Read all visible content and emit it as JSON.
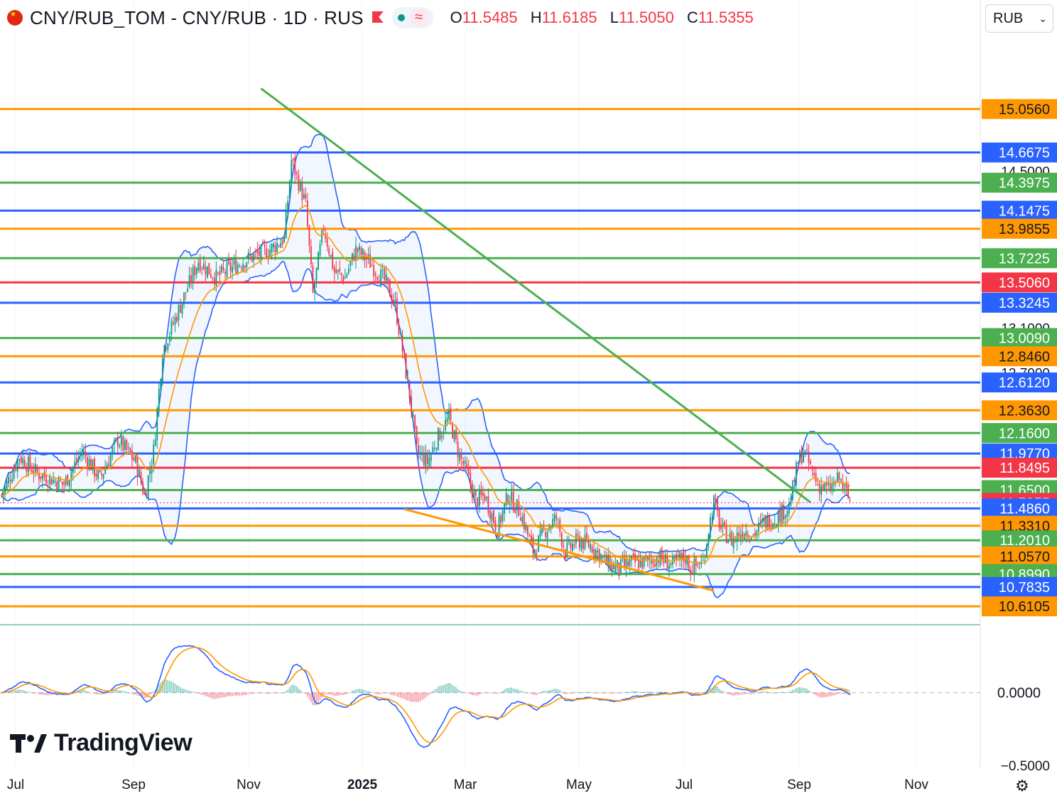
{
  "header": {
    "title": "CNY/RUB_TOM - CNY/RUB · 1D · RUS",
    "ohlc": {
      "o_label": "O",
      "o": "11.5485",
      "h_label": "H",
      "h": "11.6185",
      "l_label": "L",
      "l": "11.5050",
      "c_label": "C",
      "c": "11.5355"
    }
  },
  "currency_select": {
    "value": "RUB"
  },
  "brand": {
    "name": "TradingView"
  },
  "x_axis_labels": [
    "Jul",
    "Sep",
    "Nov",
    "2025",
    "Mar",
    "May",
    "Jul",
    "Sep",
    "Nov"
  ],
  "icons": {
    "settings": "settings-icon",
    "flag": "china-flag-icon",
    "chevron": "chevron-down-icon"
  },
  "colors": {
    "up": "#089981",
    "down": "#f23645",
    "orange": "#ff9800",
    "blue": "#2962ff",
    "green": "#4caf50",
    "red": "#f23645",
    "band": "#2962ff"
  },
  "chart_data": {
    "type": "candlestick",
    "symbol": "CNY/RUB_TOM",
    "timeframe": "1D",
    "price_ylim": [
      10.44,
      15.84
    ],
    "price_axis_ticks": [
      "14.5000",
      "13.1000",
      "12.7000"
    ],
    "last_price": "11.5355",
    "levels": [
      {
        "value": "15.0560",
        "color": "#ff9800"
      },
      {
        "value": "14.6675",
        "color": "#2962ff"
      },
      {
        "value": "14.3975",
        "color": "#4caf50"
      },
      {
        "value": "14.1475",
        "color": "#2962ff"
      },
      {
        "value": "13.9855",
        "color": "#ff9800"
      },
      {
        "value": "13.7225",
        "color": "#4caf50"
      },
      {
        "value": "13.5060",
        "color": "#f23645"
      },
      {
        "value": "13.3245",
        "color": "#2962ff"
      },
      {
        "value": "13.0090",
        "color": "#4caf50"
      },
      {
        "value": "12.8460",
        "color": "#ff9800"
      },
      {
        "value": "12.6120",
        "color": "#2962ff"
      },
      {
        "value": "12.3630",
        "color": "#ff9800"
      },
      {
        "value": "12.1600",
        "color": "#4caf50"
      },
      {
        "value": "11.9770",
        "color": "#2962ff"
      },
      {
        "value": "11.8495",
        "color": "#f23645"
      },
      {
        "value": "11.6500",
        "color": "#4caf50"
      },
      {
        "value": "11.5355",
        "color": "#f23645"
      },
      {
        "value": "11.4860",
        "color": "#2962ff"
      },
      {
        "value": "11.3310",
        "color": "#ff9800"
      },
      {
        "value": "11.2010",
        "color": "#4caf50"
      },
      {
        "value": "11.0570",
        "color": "#ff9800"
      },
      {
        "value": "10.8990",
        "color": "#4caf50"
      },
      {
        "value": "10.7835",
        "color": "#2962ff"
      },
      {
        "value": "10.6105",
        "color": "#ff9800"
      }
    ],
    "price_path": [
      [
        0,
        11.6
      ],
      [
        10,
        11.95
      ],
      [
        20,
        11.8
      ],
      [
        35,
        11.7
      ],
      [
        45,
        12.0
      ],
      [
        55,
        11.75
      ],
      [
        65,
        12.1
      ],
      [
        75,
        11.9
      ],
      [
        80,
        11.6
      ],
      [
        85,
        12.0
      ],
      [
        90,
        12.9
      ],
      [
        100,
        13.3
      ],
      [
        110,
        13.7
      ],
      [
        120,
        13.55
      ],
      [
        135,
        13.7
      ],
      [
        150,
        13.8
      ],
      [
        158,
        13.9
      ],
      [
        162,
        14.6
      ],
      [
        166,
        14.4
      ],
      [
        170,
        14.2
      ],
      [
        174,
        13.4
      ],
      [
        180,
        14.0
      ],
      [
        186,
        13.6
      ],
      [
        192,
        13.55
      ],
      [
        198,
        13.8
      ],
      [
        205,
        13.7
      ],
      [
        215,
        13.5
      ],
      [
        220,
        13.3
      ],
      [
        225,
        12.8
      ],
      [
        228,
        12.5
      ],
      [
        232,
        12.0
      ],
      [
        238,
        11.9
      ],
      [
        243,
        12.1
      ],
      [
        250,
        12.3
      ],
      [
        255,
        12.0
      ],
      [
        260,
        11.8
      ],
      [
        265,
        11.55
      ],
      [
        270,
        11.6
      ],
      [
        277,
        11.3
      ],
      [
        283,
        11.6
      ],
      [
        290,
        11.45
      ],
      [
        297,
        11.1
      ],
      [
        304,
        11.3
      ],
      [
        310,
        11.4
      ],
      [
        315,
        11.1
      ],
      [
        322,
        11.2
      ],
      [
        330,
        11.15
      ],
      [
        338,
        11.0
      ],
      [
        345,
        10.95
      ],
      [
        352,
        11.0
      ],
      [
        360,
        11.0
      ],
      [
        367,
        11.05
      ],
      [
        375,
        10.98
      ],
      [
        382,
        11.05
      ],
      [
        385,
        10.95
      ],
      [
        392,
        11.0
      ],
      [
        395,
        11.3
      ],
      [
        398,
        11.55
      ],
      [
        402,
        11.3
      ],
      [
        408,
        11.2
      ],
      [
        415,
        11.3
      ],
      [
        420,
        11.25
      ],
      [
        425,
        11.35
      ],
      [
        432,
        11.4
      ],
      [
        440,
        11.5
      ],
      [
        445,
        11.9
      ],
      [
        448,
        12.0
      ],
      [
        452,
        11.85
      ],
      [
        456,
        11.7
      ],
      [
        462,
        11.65
      ],
      [
        468,
        11.75
      ],
      [
        474,
        11.55
      ]
    ],
    "trendlines": [
      {
        "color": "#4caf50",
        "from": [
          145,
          15.24
        ],
        "to": [
          452,
          11.54
        ]
      },
      {
        "color": "#ff9800",
        "from": [
          225,
          11.48
        ],
        "to": [
          398,
          10.75
        ]
      }
    ],
    "indicators": [
      "Bollinger Bands",
      "EMA",
      "MACD"
    ],
    "macd": {
      "zero_label": "0.0000",
      "bottom_tick": "−0.5000",
      "ylim": [
        -0.55,
        0.45
      ]
    }
  }
}
